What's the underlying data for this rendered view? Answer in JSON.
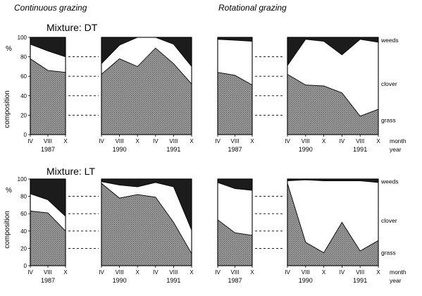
{
  "headings": {
    "left": "Continuous grazing",
    "right": "Rotational grazing"
  },
  "y_axis": {
    "label": "composition",
    "unit": "%"
  },
  "y_ticks": [
    "0",
    "20",
    "40",
    "60",
    "80",
    "100"
  ],
  "legend_labels": {
    "weeds": "weeds",
    "clover": "clover",
    "grass": "grass"
  },
  "axis_captions": {
    "month": "month",
    "year": "year"
  },
  "colors": {
    "grass": "#8c8c8c",
    "clover": "#ffffff",
    "weeds": "#1c1c1c"
  },
  "chart_data": [
    {
      "type": "area",
      "mixture": "Mixture: DT",
      "grazing": "Continuous grazing",
      "ylim": [
        0,
        100
      ],
      "segments": [
        {
          "ticks": [
            "IV",
            "VIII",
            "X"
          ],
          "year": "1987",
          "x": [
            0,
            1,
            2
          ],
          "grass": [
            78,
            66,
            64
          ],
          "clover_top": [
            93,
            86,
            80
          ]
        },
        {
          "ticks": [
            "IV",
            "VIII",
            "X",
            "IV",
            "VIII",
            "X"
          ],
          "years": [
            "1990",
            "1991"
          ],
          "x": [
            0,
            1,
            2,
            3,
            4,
            5
          ],
          "grass": [
            62,
            78,
            70,
            89,
            73,
            52
          ],
          "clover_top": [
            73,
            92,
            100,
            100,
            93,
            70
          ]
        }
      ]
    },
    {
      "type": "area",
      "mixture": "Mixture: DT",
      "grazing": "Rotational grazing",
      "ylim": [
        0,
        100
      ],
      "segments": [
        {
          "ticks": [
            "IV",
            "VIII",
            "X"
          ],
          "year": "1987",
          "x": [
            0,
            1,
            2
          ],
          "grass": [
            64,
            61,
            51
          ],
          "clover_top": [
            98,
            97,
            96
          ]
        },
        {
          "ticks": [
            "IV",
            "VIII",
            "X",
            "IV",
            "VIII",
            "X"
          ],
          "years": [
            "1990",
            "1991"
          ],
          "x": [
            0,
            1,
            2,
            3,
            4,
            5
          ],
          "grass": [
            62,
            51,
            50,
            43,
            19,
            26
          ],
          "clover_top": [
            71,
            98,
            96,
            82,
            98,
            95
          ]
        }
      ]
    },
    {
      "type": "area",
      "mixture": "Mixture: LT",
      "grazing": "Continuous grazing",
      "ylim": [
        0,
        100
      ],
      "segments": [
        {
          "ticks": [
            "IV",
            "VIII",
            "X"
          ],
          "year": "1987",
          "x": [
            0,
            1,
            2
          ],
          "grass": [
            63,
            61,
            40
          ],
          "clover_top": [
            83,
            76,
            57
          ]
        },
        {
          "ticks": [
            "IV",
            "VIII",
            "X",
            "IV",
            "VIII",
            "X"
          ],
          "years": [
            "1990",
            "1991"
          ],
          "x": [
            0,
            1,
            2,
            3,
            4,
            5
          ],
          "grass": [
            95,
            78,
            82,
            79,
            50,
            14
          ],
          "clover_top": [
            97,
            93,
            91,
            96,
            91,
            41
          ]
        }
      ]
    },
    {
      "type": "area",
      "mixture": "Mixture: LT",
      "grazing": "Rotational grazing",
      "ylim": [
        0,
        100
      ],
      "segments": [
        {
          "ticks": [
            "IV",
            "VIII",
            "X"
          ],
          "year": "1987",
          "x": [
            0,
            1,
            2
          ],
          "grass": [
            53,
            38,
            35
          ],
          "clover_top": [
            96,
            89,
            87
          ]
        },
        {
          "ticks": [
            "IV",
            "VIII",
            "X",
            "IV",
            "VIII",
            "X"
          ],
          "years": [
            "1990",
            "1991"
          ],
          "x": [
            0,
            1,
            2,
            3,
            4,
            5
          ],
          "grass": [
            95,
            27,
            15,
            50,
            17,
            29
          ],
          "clover_top": [
            98,
            99,
            98,
            98,
            98,
            96
          ]
        }
      ]
    }
  ]
}
